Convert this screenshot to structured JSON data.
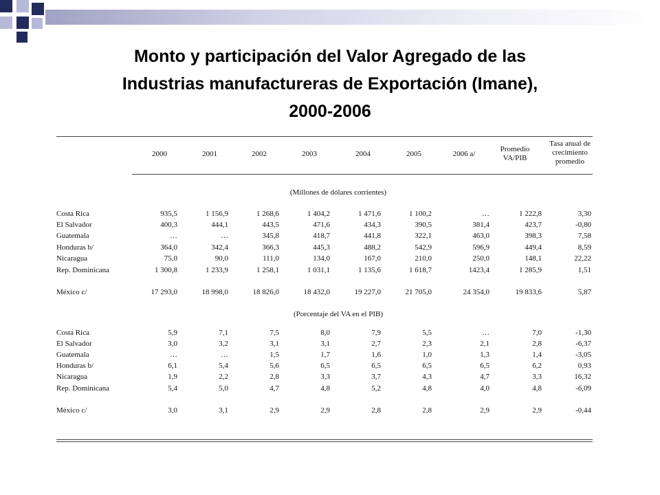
{
  "title": {
    "line1": "Monto  y participación del Valor Agregado de las",
    "line2": "Industrias manufactureras de Exportación (Imane),",
    "line3": "2000-2006"
  },
  "decor": {
    "accent_dark": "#232a5c",
    "accent_light": "#b6b9d8"
  },
  "table": {
    "columns": [
      "2000",
      "2001",
      "2002",
      "2003",
      "2004",
      "2005",
      "2006 a/",
      "Promedio\nVA/PIB",
      "Tasa anual de\ncrecimiento\npromedio"
    ],
    "column_lines": [
      [
        "2000"
      ],
      [
        "2001"
      ],
      [
        "2002"
      ],
      [
        "2003"
      ],
      [
        "2004"
      ],
      [
        "2005"
      ],
      [
        "2006 a/"
      ],
      [
        "Promedio",
        "VA/PIB"
      ],
      [
        "Tasa anual de",
        "crecimiento",
        "promedio"
      ]
    ],
    "sections": [
      {
        "heading": "(Millones de dólares corrientes)",
        "rows": [
          {
            "label": "Costa Rica",
            "values": [
              "935,5",
              "1 156,9",
              "1 268,6",
              "1 404,2",
              "1 471,6",
              "1 100,2",
              "…",
              "1 222,8",
              "3,30"
            ]
          },
          {
            "label": "El Salvador",
            "values": [
              "400,3",
              "444,1",
              "443,5",
              "471,6",
              "434,3",
              "390,5",
              "381,4",
              "423,7",
              "-0,80"
            ]
          },
          {
            "label": "Guatemala",
            "values": [
              "…",
              "…",
              "345,8",
              "418,7",
              "441,8",
              "322,1",
              "463,0",
              "398,3",
              "7,58"
            ]
          },
          {
            "label": "Honduras b/",
            "values": [
              "364,0",
              "342,4",
              "366,3",
              "445,3",
              "488,2",
              "542,9",
              "596,9",
              "449,4",
              "8,59"
            ]
          },
          {
            "label": "Nicaragua",
            "values": [
              "75,0",
              "90,0",
              "111,0",
              "134,0",
              "167,0",
              "210,0",
              "250,0",
              "148,1",
              "22,22"
            ]
          },
          {
            "label": "Rep. Dominicana",
            "values": [
              "1 300,8",
              "1 233,9",
              "1 258,1",
              "1 031,1",
              "1 135,6",
              "1 618,7",
              "1423,4",
              "1 285,9",
              "1,51"
            ]
          },
          {
            "label": "México c/",
            "values": [
              "17 293,0",
              "18 998,0",
              "18 826,0",
              "18 432,0",
              "19 227,0",
              "21 705,0",
              "24 354,0",
              "19 833,6",
              "5,87"
            ]
          }
        ]
      },
      {
        "heading": "(Porcentaje del VA en el PIB)",
        "rows": [
          {
            "label": "Costa Rica",
            "values": [
              "5,9",
              "7,1",
              "7,5",
              "8,0",
              "7,9",
              "5,5",
              "…",
              "7,0",
              "-1,30"
            ]
          },
          {
            "label": "El Salvador",
            "values": [
              "3,0",
              "3,2",
              "3,1",
              "3,1",
              "2,7",
              "2,3",
              "2,1",
              "2,8",
              "-6,37"
            ]
          },
          {
            "label": "Guatemala",
            "values": [
              "…",
              "…",
              "1,5",
              "1,7",
              "1,6",
              "1,0",
              "1,3",
              "1,4",
              "-3,05"
            ]
          },
          {
            "label": "Honduras b/",
            "values": [
              "6,1",
              "5,4",
              "5,6",
              "6,5",
              "6,5",
              "6,5",
              "6,5",
              "6,2",
              "0,93"
            ]
          },
          {
            "label": "Nicaragua",
            "values": [
              "1,9",
              "2,2",
              "2,8",
              "3,3",
              "3,7",
              "4,3",
              "4,7",
              "3,3",
              "16,32"
            ]
          },
          {
            "label": "Rep. Dominicana",
            "values": [
              "5,4",
              "5,0",
              "4,7",
              "4,8",
              "5,2",
              "4,8",
              "4,0",
              "4,8",
              "-6,09"
            ]
          },
          {
            "label": "México c/",
            "values": [
              "3,0",
              "3,1",
              "2,9",
              "2,9",
              "2,8",
              "2,8",
              "2,9",
              "2,9",
              "-0,44"
            ]
          }
        ]
      }
    ]
  }
}
